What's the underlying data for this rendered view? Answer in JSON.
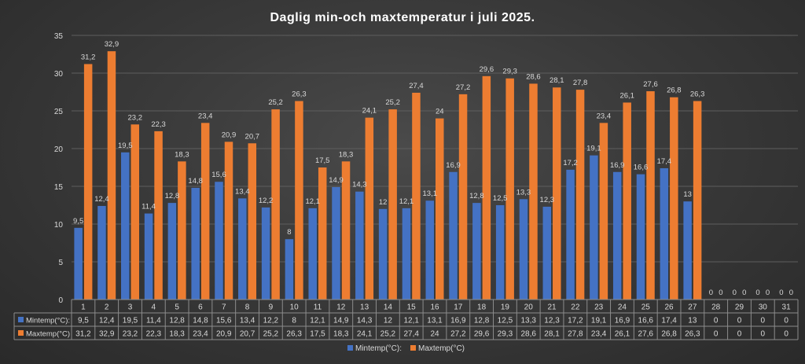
{
  "chart_data": {
    "type": "bar",
    "title": "Daglig min-och maxtemperatur i juli 2025.",
    "categories": [
      "1",
      "2",
      "3",
      "4",
      "5",
      "6",
      "7",
      "8",
      "9",
      "10",
      "11",
      "12",
      "13",
      "14",
      "15",
      "16",
      "17",
      "18",
      "19",
      "20",
      "21",
      "22",
      "23",
      "24",
      "25",
      "26",
      "27",
      "28",
      "29",
      "30",
      "31"
    ],
    "yticks": [
      "0",
      "5",
      "10",
      "15",
      "20",
      "25",
      "30",
      "35"
    ],
    "ylim": [
      0,
      35
    ],
    "grid": true,
    "legend_position": "bottom",
    "data_table": true,
    "series": [
      {
        "name": "Mintemp(°C):",
        "color": "#4472C4",
        "values": [
          9.5,
          12.4,
          19.5,
          11.4,
          12.8,
          14.8,
          15.6,
          13.4,
          12.2,
          8,
          12.1,
          14.9,
          14.3,
          12,
          12.1,
          13.1,
          16.9,
          12.8,
          12.5,
          13.3,
          12.3,
          17.2,
          19.1,
          16.9,
          16.6,
          17.4,
          13,
          0,
          0,
          0,
          0
        ],
        "labels": [
          "9,5",
          "12,4",
          "19,5",
          "11,4",
          "12,8",
          "14,8",
          "15,6",
          "13,4",
          "12,2",
          "8",
          "12,1",
          "14,9",
          "14,3",
          "12",
          "12,1",
          "13,1",
          "16,9",
          "12,8",
          "12,5",
          "13,3",
          "12,3",
          "17,2",
          "19,1",
          "16,9",
          "16,6",
          "17,4",
          "13",
          "0",
          "0",
          "0",
          "0"
        ]
      },
      {
        "name": "Maxtemp(°C)",
        "color": "#ED7D31",
        "values": [
          31.2,
          32.9,
          23.2,
          22.3,
          18.3,
          23.4,
          20.9,
          20.7,
          25.2,
          26.3,
          17.5,
          18.3,
          24.1,
          25.2,
          27.4,
          24,
          27.2,
          29.6,
          29.3,
          28.6,
          28.1,
          27.8,
          23.4,
          26.1,
          27.6,
          26.8,
          26.3,
          0,
          0,
          0,
          0
        ],
        "labels": [
          "31,2",
          "32,9",
          "23,2",
          "22,3",
          "18,3",
          "23,4",
          "20,9",
          "20,7",
          "25,2",
          "26,3",
          "17,5",
          "18,3",
          "24,1",
          "25,2",
          "27,4",
          "24",
          "27,2",
          "29,6",
          "29,3",
          "28,6",
          "28,1",
          "27,8",
          "23,4",
          "26,1",
          "27,6",
          "26,8",
          "26,3",
          "0",
          "0",
          "0",
          "0"
        ]
      }
    ]
  }
}
